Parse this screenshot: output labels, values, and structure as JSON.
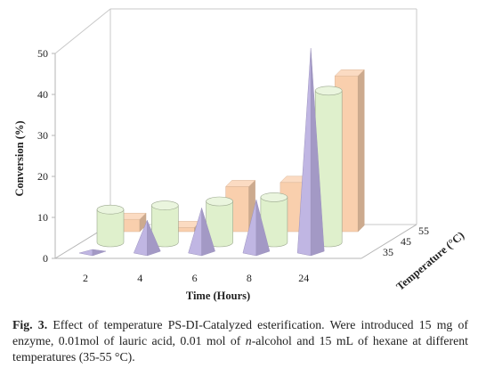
{
  "chart_data": {
    "type": "bar",
    "style": "3d",
    "categories": [
      "2",
      "4",
      "6",
      "8",
      "24"
    ],
    "series": [
      {
        "name": "35",
        "shape": "pyramid",
        "color": "#b9aee0",
        "values": [
          0,
          8,
          11,
          13,
          50
        ]
      },
      {
        "name": "45",
        "shape": "cylinder",
        "color": "#dff0cc",
        "values": [
          8,
          9,
          10,
          11,
          37
        ]
      },
      {
        "name": "55",
        "shape": "box",
        "color": "#f9cfad",
        "values": [
          3,
          1,
          11,
          12,
          38
        ]
      }
    ],
    "xlabel": "Time (Hours)",
    "ylabel": "Conversion (%)",
    "zlabel": "Temperature (°C)",
    "ylim": [
      0,
      50
    ],
    "yticks": [
      "0",
      "10",
      "20",
      "30",
      "40",
      "50"
    ],
    "grid": false
  },
  "caption": {
    "label": "Fig. 3.",
    "text_part1": " Effect of temperature PS-DI-Catalyzed esterification. Were introduced 15 mg of enzyme, 0.01mol of lauric acid, 0.01 mol of ",
    "italic": "n",
    "text_part2": "-alcohol and 15 mL of hexane at different temperatures (35-55 °C)."
  }
}
